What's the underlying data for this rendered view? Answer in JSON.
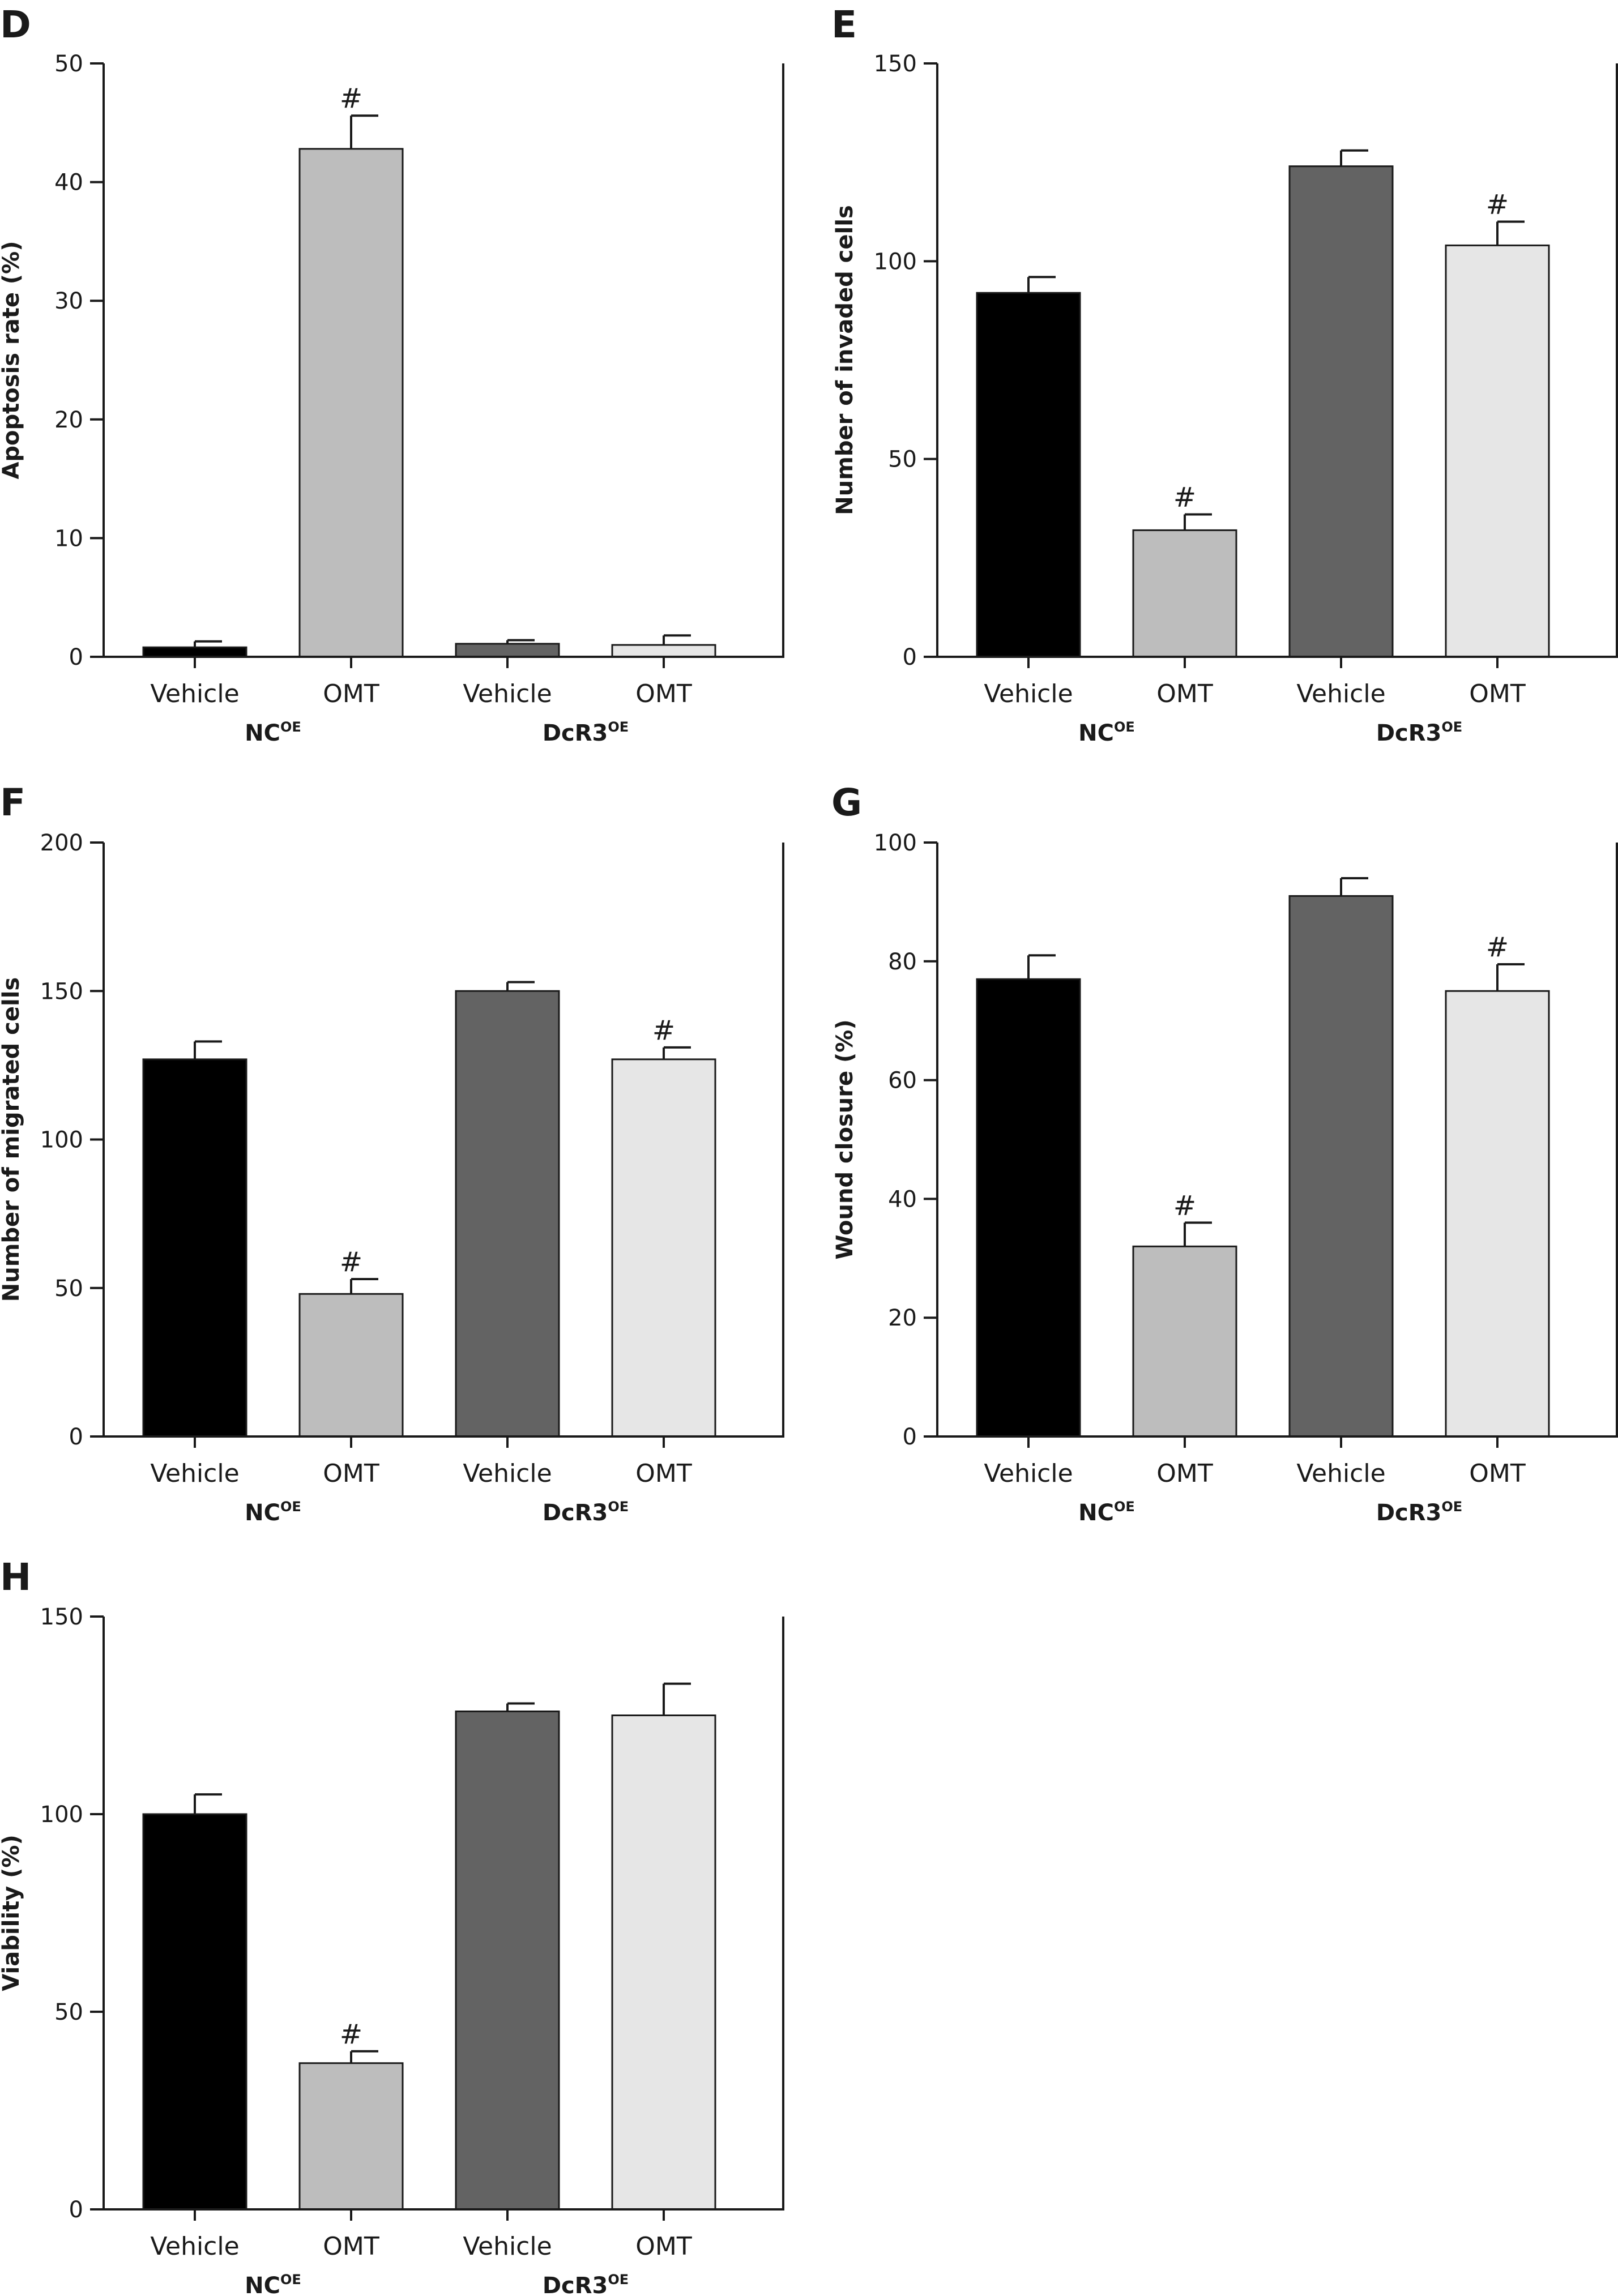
{
  "chart_data": [
    {
      "panel": "D",
      "type": "bar",
      "ylabel": "Apoptosis rate (%)",
      "ylim": [
        0,
        50
      ],
      "yticks": [
        0,
        10,
        20,
        30,
        40,
        50
      ],
      "categories": [
        "Vehicle",
        "OMT",
        "Vehicle",
        "OMT"
      ],
      "groups": [
        {
          "name": "NC",
          "sup": "OE",
          "span": [
            0,
            1
          ]
        },
        {
          "name": "DcR3",
          "sup": "OE",
          "span": [
            2,
            3
          ]
        }
      ],
      "values": [
        0.8,
        42.8,
        1.1,
        1.0
      ],
      "errors": [
        0.5,
        2.8,
        0.3,
        0.8
      ],
      "significance": [
        "",
        "#",
        "",
        ""
      ],
      "colors": [
        "#000000",
        "#bdbdbd",
        "#636363",
        "#e6e6e6"
      ]
    },
    {
      "panel": "E",
      "type": "bar",
      "ylabel": "Number of invaded cells",
      "ylim": [
        0,
        150
      ],
      "yticks": [
        0,
        50,
        100,
        150
      ],
      "categories": [
        "Vehicle",
        "OMT",
        "Vehicle",
        "OMT"
      ],
      "groups": [
        {
          "name": "NC",
          "sup": "OE",
          "span": [
            0,
            1
          ]
        },
        {
          "name": "DcR3",
          "sup": "OE",
          "span": [
            2,
            3
          ]
        }
      ],
      "values": [
        92,
        32,
        124,
        104
      ],
      "errors": [
        4,
        4,
        4,
        6
      ],
      "significance": [
        "",
        "#",
        "",
        "#"
      ],
      "colors": [
        "#000000",
        "#bdbdbd",
        "#636363",
        "#e6e6e6"
      ]
    },
    {
      "panel": "F",
      "type": "bar",
      "ylabel": "Number of migrated cells",
      "ylim": [
        0,
        200
      ],
      "yticks": [
        0,
        50,
        100,
        150,
        200
      ],
      "categories": [
        "Vehicle",
        "OMT",
        "Vehicle",
        "OMT"
      ],
      "groups": [
        {
          "name": "NC",
          "sup": "OE",
          "span": [
            0,
            1
          ]
        },
        {
          "name": "DcR3",
          "sup": "OE",
          "span": [
            2,
            3
          ]
        }
      ],
      "values": [
        127,
        48,
        150,
        127
      ],
      "errors": [
        6,
        5,
        3,
        4
      ],
      "significance": [
        "",
        "#",
        "",
        "#"
      ],
      "colors": [
        "#000000",
        "#bdbdbd",
        "#636363",
        "#e6e6e6"
      ]
    },
    {
      "panel": "G",
      "type": "bar",
      "ylabel": "Wound closure (%)",
      "ylim": [
        0,
        100
      ],
      "yticks": [
        0,
        20,
        40,
        60,
        80,
        100
      ],
      "categories": [
        "Vehicle",
        "OMT",
        "Vehicle",
        "OMT"
      ],
      "groups": [
        {
          "name": "NC",
          "sup": "OE",
          "span": [
            0,
            1
          ]
        },
        {
          "name": "DcR3",
          "sup": "OE",
          "span": [
            2,
            3
          ]
        }
      ],
      "values": [
        77,
        32,
        91,
        75
      ],
      "errors": [
        4,
        4,
        3,
        4.5
      ],
      "significance": [
        "",
        "#",
        "",
        "#"
      ],
      "colors": [
        "#000000",
        "#bdbdbd",
        "#636363",
        "#e6e6e6"
      ]
    },
    {
      "panel": "H",
      "type": "bar",
      "ylabel": "Viability (%)",
      "ylim": [
        0,
        150
      ],
      "yticks": [
        0,
        50,
        100,
        150
      ],
      "categories": [
        "Vehicle",
        "OMT",
        "Vehicle",
        "OMT"
      ],
      "groups": [
        {
          "name": "NC",
          "sup": "OE",
          "span": [
            0,
            1
          ]
        },
        {
          "name": "DcR3",
          "sup": "OE",
          "span": [
            2,
            3
          ]
        }
      ],
      "values": [
        100,
        37,
        126,
        125
      ],
      "errors": [
        5,
        3,
        2,
        8
      ],
      "significance": [
        "",
        "#",
        "",
        ""
      ],
      "colors": [
        "#000000",
        "#bdbdbd",
        "#636363",
        "#e6e6e6"
      ]
    }
  ]
}
